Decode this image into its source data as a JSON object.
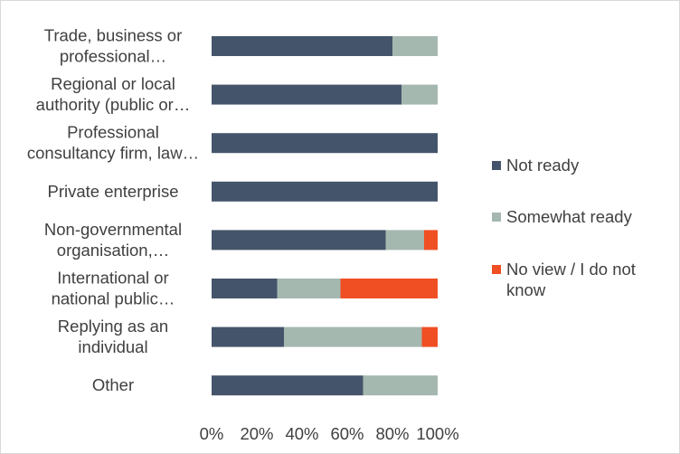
{
  "chart_data": {
    "type": "bar",
    "orientation": "horizontal",
    "stacked": "percent",
    "categories": [
      [
        "Trade, business or",
        "professional…"
      ],
      [
        "Regional or local",
        "authority (public or…"
      ],
      [
        "Professional",
        "consultancy firm, law…"
      ],
      [
        "Private enterprise"
      ],
      [
        "Non-governmental",
        "organisation,…"
      ],
      [
        "International or",
        "national public…"
      ],
      [
        "Replying as an",
        "individual"
      ],
      [
        "Other"
      ]
    ],
    "series": [
      {
        "name": "Not ready",
        "color": "#44546a",
        "values": [
          80,
          84,
          100,
          100,
          77,
          29,
          32,
          67
        ]
      },
      {
        "name": "Somewhat ready",
        "color": "#a5b8af",
        "values": [
          20,
          16,
          0,
          0,
          17,
          28,
          61,
          33
        ]
      },
      {
        "name": "No view / I do not know",
        "color": "#f04e23",
        "values": [
          0,
          0,
          0,
          0,
          6,
          43,
          7,
          0
        ]
      }
    ],
    "xlim": [
      0,
      100
    ],
    "xticks": [
      "0%",
      "20%",
      "40%",
      "60%",
      "80%",
      "100%"
    ],
    "legend_labels": [
      [
        "Not ready"
      ],
      [
        "Somewhat ready"
      ],
      [
        "No view / I do not",
        "know"
      ]
    ],
    "grid": false,
    "legend_position": "right"
  }
}
